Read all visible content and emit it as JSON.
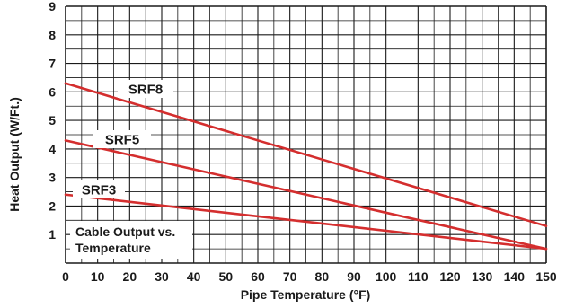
{
  "chart_data": {
    "type": "line",
    "xlabel": "Pipe Temperature (°F)",
    "ylabel": "Heat Output (W/Ft.)",
    "xlim": [
      0,
      150
    ],
    "ylim": [
      0,
      9
    ],
    "x_ticks": [
      0,
      10,
      20,
      30,
      40,
      50,
      60,
      70,
      80,
      90,
      100,
      110,
      120,
      130,
      140,
      150
    ],
    "y_ticks": [
      1,
      2,
      3,
      4,
      5,
      6,
      7,
      8,
      9
    ],
    "grid": true,
    "annotation": [
      "Cable Output vs.",
      "Temperature"
    ],
    "series": [
      {
        "name": "SRF8",
        "x": [
          0,
          150
        ],
        "y": [
          6.3,
          1.3
        ]
      },
      {
        "name": "SRF5",
        "x": [
          0,
          150
        ],
        "y": [
          4.3,
          0.5
        ]
      },
      {
        "name": "SRF3",
        "x": [
          0,
          150
        ],
        "y": [
          2.4,
          0.5
        ]
      }
    ],
    "colors": {
      "series": "#d42e2e",
      "grid": "#1a1a1a",
      "text": "#1a1a1a"
    }
  }
}
